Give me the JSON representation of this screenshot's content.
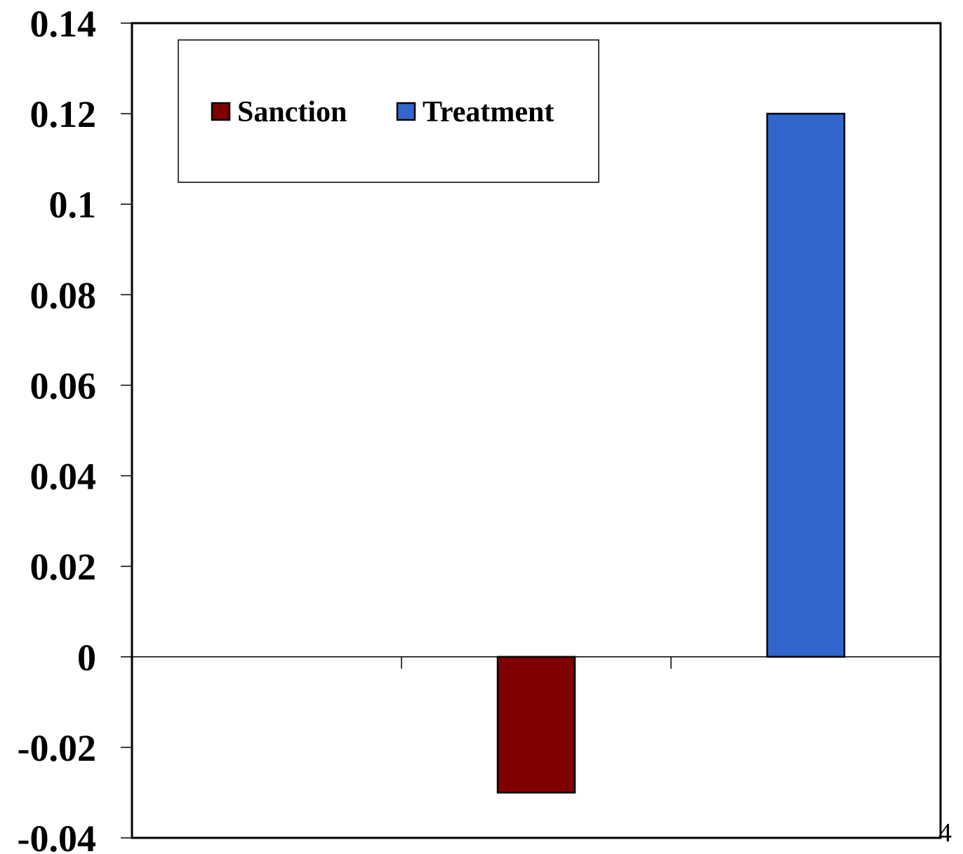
{
  "chart_data": {
    "type": "bar",
    "title": "",
    "xlabel": "",
    "ylabel": "",
    "ylim": [
      -0.04,
      0.14
    ],
    "yticks": [
      -0.04,
      -0.02,
      0,
      0.02,
      0.04,
      0.06,
      0.08,
      0.1,
      0.12,
      0.14
    ],
    "ytick_labels": [
      "-0.04",
      "-0.02",
      "0",
      "0.02",
      "0.04",
      "0.06",
      "0.08",
      "0.1",
      "0.12",
      "0.14"
    ],
    "categories": [
      "",
      "",
      ""
    ],
    "series": [
      {
        "name": "Sanction",
        "color": "#800000",
        "values": [
          null,
          -0.03,
          null
        ]
      },
      {
        "name": "Treatment",
        "color": "#3366cc",
        "values": [
          null,
          null,
          0.12
        ]
      }
    ],
    "legend_position": "top-left",
    "grid": false
  },
  "page_number": "4"
}
